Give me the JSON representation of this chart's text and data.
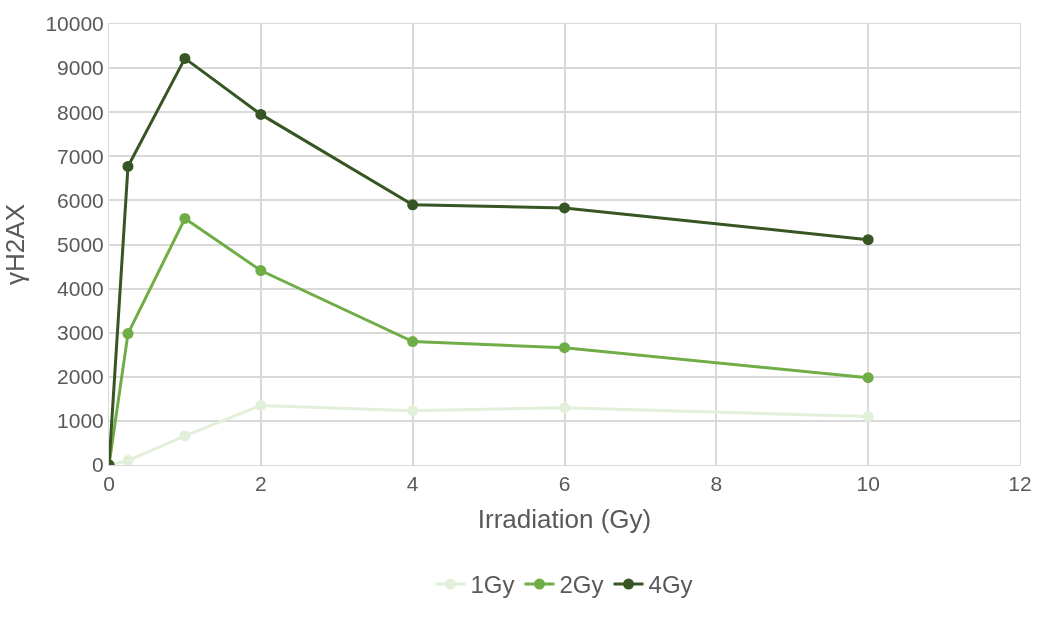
{
  "chart_data": {
    "type": "line",
    "xlabel": "Irradiation (Gy)",
    "ylabel": "γH2AX",
    "x": [
      0,
      0.25,
      1,
      2,
      4,
      6,
      10
    ],
    "series": [
      {
        "name": "1Gy",
        "color": "#e2efda",
        "values": [
          0,
          100,
          660,
          1350,
          1230,
          1300,
          1100
        ]
      },
      {
        "name": "2Gy",
        "color": "#70ad47",
        "values": [
          0,
          2980,
          5590,
          4410,
          2800,
          2660,
          1980
        ]
      },
      {
        "name": "4Gy",
        "color": "#375623",
        "values": [
          0,
          6770,
          9220,
          7950,
          5900,
          5830,
          5110
        ]
      }
    ],
    "xlim": [
      0,
      12
    ],
    "xticks": [
      0,
      2,
      4,
      6,
      8,
      10,
      12
    ],
    "ylim": [
      0,
      10000
    ],
    "yticks": [
      0,
      1000,
      2000,
      3000,
      4000,
      5000,
      6000,
      7000,
      8000,
      9000,
      10000
    ],
    "grid": true,
    "legend": "bottom",
    "marker": "circle",
    "line_style": "solid"
  }
}
